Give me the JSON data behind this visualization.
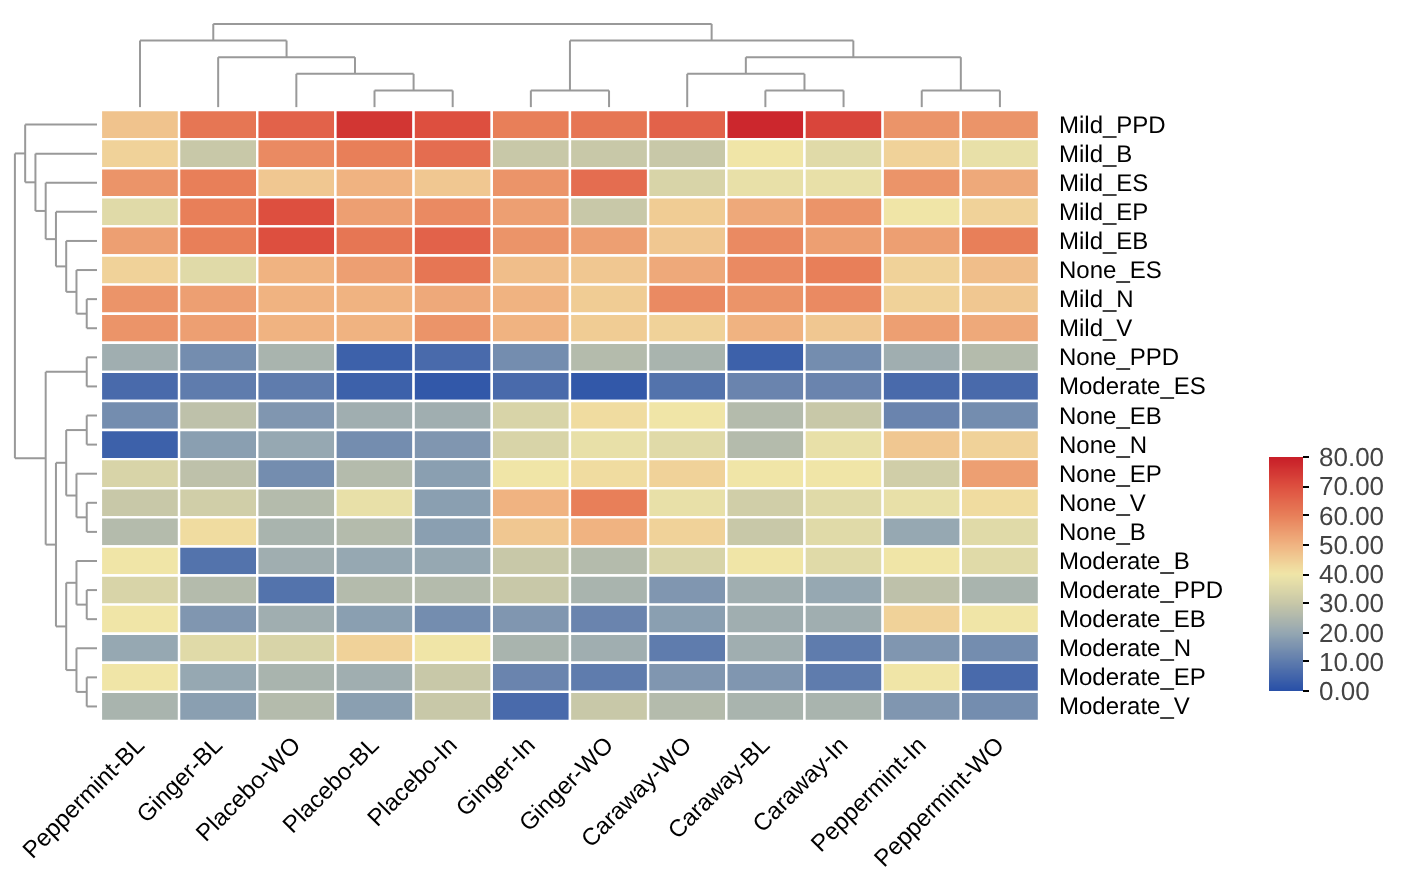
{
  "chart_data": {
    "type": "heatmap",
    "categories": [
      "Peppermint-BL",
      "Ginger-BL",
      "Placebo-WO",
      "Placebo-BL",
      "Placebo-In",
      "Ginger-In",
      "Ginger-WO",
      "Caraway-WO",
      "Caraway-BL",
      "Caraway-In",
      "Peppermint-In",
      "Peppermint-WO"
    ],
    "y_categories": [
      "Mild_PPD",
      "Mild_B",
      "Mild_ES",
      "Mild_EP",
      "Mild_EB",
      "None_ES",
      "Mild_N",
      "Mild_V",
      "None_PPD",
      "Moderate_ES",
      "None_EB",
      "None_N",
      "None_EP",
      "None_V",
      "None_B",
      "Moderate_B",
      "Moderate_PPD",
      "Moderate_EB",
      "Moderate_N",
      "Moderate_EP",
      "Moderate_V"
    ],
    "cells": [
      [
        47,
        62,
        66,
        75,
        70,
        60,
        62,
        66,
        78,
        72,
        56,
        56
      ],
      [
        44,
        30,
        58,
        60,
        64,
        30,
        30,
        30,
        40,
        36,
        44,
        38
      ],
      [
        56,
        60,
        46,
        50,
        46,
        56,
        64,
        34,
        38,
        38,
        56,
        52
      ],
      [
        36,
        60,
        70,
        54,
        58,
        54,
        30,
        45,
        52,
        56,
        40,
        44
      ],
      [
        54,
        60,
        70,
        62,
        66,
        56,
        54,
        46,
        58,
        54,
        54,
        60
      ],
      [
        44,
        36,
        50,
        54,
        62,
        48,
        46,
        52,
        58,
        60,
        44,
        48
      ],
      [
        56,
        54,
        50,
        50,
        52,
        50,
        45,
        58,
        56,
        58,
        44,
        46
      ],
      [
        56,
        54,
        50,
        50,
        56,
        50,
        45,
        44,
        50,
        46,
        54,
        52
      ],
      [
        22,
        14,
        24,
        4,
        6,
        14,
        26,
        24,
        4,
        14,
        22,
        26
      ],
      [
        6,
        10,
        10,
        4,
        2,
        6,
        2,
        8,
        12,
        12,
        6,
        6
      ],
      [
        14,
        28,
        16,
        22,
        22,
        34,
        42,
        40,
        26,
        30,
        12,
        14
      ],
      [
        4,
        18,
        20,
        14,
        16,
        34,
        38,
        36,
        26,
        38,
        46,
        44
      ],
      [
        34,
        28,
        14,
        26,
        18,
        40,
        42,
        44,
        40,
        40,
        32,
        54
      ],
      [
        30,
        32,
        26,
        38,
        18,
        50,
        60,
        38,
        32,
        36,
        38,
        42
      ],
      [
        26,
        42,
        24,
        26,
        18,
        46,
        50,
        44,
        30,
        36,
        20,
        36
      ],
      [
        40,
        8,
        22,
        20,
        20,
        30,
        26,
        34,
        40,
        36,
        40,
        36
      ],
      [
        34,
        26,
        8,
        26,
        26,
        30,
        24,
        16,
        22,
        20,
        28,
        24
      ],
      [
        40,
        16,
        22,
        18,
        14,
        16,
        12,
        18,
        22,
        22,
        44,
        40
      ],
      [
        20,
        36,
        34,
        44,
        40,
        24,
        22,
        10,
        22,
        10,
        16,
        14
      ],
      [
        40,
        20,
        24,
        22,
        30,
        12,
        10,
        16,
        16,
        10,
        40,
        6
      ],
      [
        24,
        18,
        26,
        18,
        30,
        6,
        30,
        26,
        24,
        24,
        16,
        14
      ]
    ],
    "clim": [
      0,
      80
    ],
    "cticks": [
      {
        "value": 0,
        "label": "0.00"
      },
      {
        "value": 10,
        "label": "10.00"
      },
      {
        "value": 20,
        "label": "20.00"
      },
      {
        "value": 30,
        "label": "30.00"
      },
      {
        "value": 40,
        "label": "40.00"
      },
      {
        "value": 50,
        "label": "50.00"
      },
      {
        "value": 60,
        "label": "60.00"
      },
      {
        "value": 70,
        "label": "70.00"
      },
      {
        "value": 80,
        "label": "80.00"
      }
    ]
  }
}
